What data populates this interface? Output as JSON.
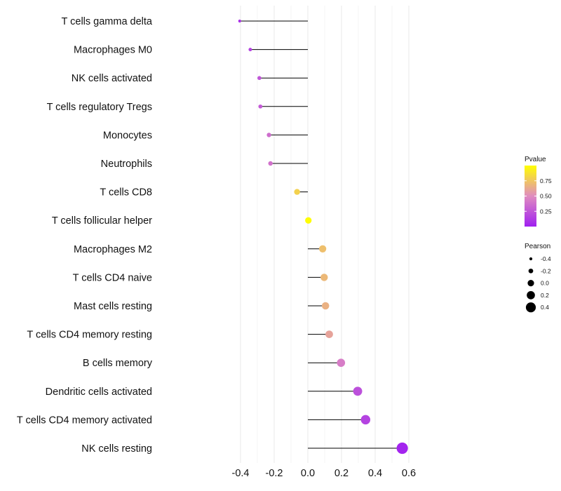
{
  "chart_data": {
    "type": "lollipop",
    "title": "",
    "xlabel": "",
    "ylabel": "",
    "xlim": [
      -0.42,
      0.62
    ],
    "x_ticks": [
      -0.4,
      -0.2,
      0.0,
      0.2,
      0.4,
      0.6
    ],
    "x_tick_labels": [
      "-0.4",
      "-0.2",
      "0.0",
      "0.2",
      "0.4",
      "0.6"
    ],
    "grid": true,
    "colors": {
      "low": "#a020f0",
      "mid": "#e08cc0",
      "high": "#ffff00",
      "stem": "#000000",
      "grid": "#ebebeb"
    },
    "categories": [
      "T cells gamma delta",
      "Macrophages M0",
      "NK cells activated",
      "T cells regulatory  Tregs",
      "Monocytes",
      "Neutrophils",
      "T cells CD8",
      "T cells follicular helper",
      "Macrophages M2",
      "T cells CD4 naive",
      "Mast cells resting",
      "T cells CD4 memory resting",
      "B cells memory",
      "Dendritic cells activated",
      "T cells CD4 memory activated",
      "NK cells resting"
    ],
    "pearson": [
      -0.405,
      -0.342,
      -0.288,
      -0.282,
      -0.231,
      -0.222,
      -0.064,
      0.003,
      0.088,
      0.097,
      0.105,
      0.127,
      0.197,
      0.296,
      0.343,
      0.561
    ],
    "pvalue": [
      0.08,
      0.16,
      0.25,
      0.27,
      0.36,
      0.38,
      0.8,
      0.99,
      0.72,
      0.69,
      0.66,
      0.6,
      0.43,
      0.22,
      0.16,
      0.02
    ],
    "legend_color": {
      "title": "Pvalue",
      "position": "right",
      "range": [
        0.0,
        1.0
      ],
      "ticks": [
        0.25,
        0.5,
        0.75
      ],
      "tick_labels": [
        "0.25",
        "0.50",
        "0.75"
      ]
    },
    "legend_size": {
      "title": "Pearson",
      "position": "right",
      "values": [
        -0.4,
        -0.2,
        0.0,
        0.2,
        0.4
      ],
      "labels": [
        "-0.4",
        "-0.2",
        "0.0",
        "0.2",
        "0.4"
      ]
    }
  }
}
